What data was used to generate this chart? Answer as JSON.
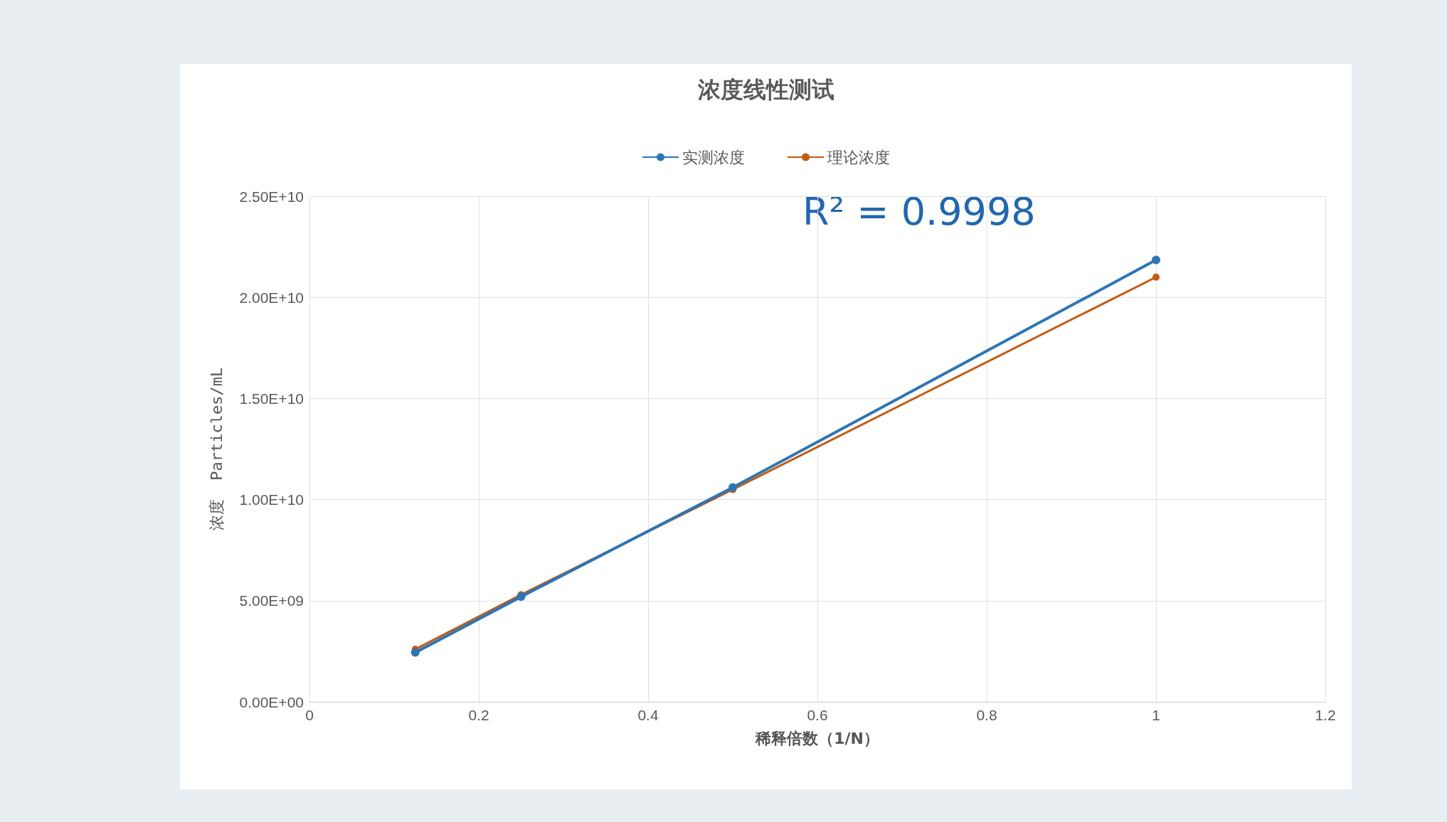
{
  "chart_data": {
    "type": "line",
    "title": "浓度线性测试",
    "xlabel": "稀释倍数（1/N）",
    "ylabel": "浓度  Particles/mL",
    "x": [
      0.125,
      0.25,
      0.5,
      1
    ],
    "series": [
      {
        "name": "实测浓度",
        "color": "#2e75b6",
        "values": [
          2440000000,
          5200000000,
          10600000000,
          21850000000
        ]
      },
      {
        "name": "理论浓度",
        "color": "#c55a11",
        "values": [
          2600000000,
          5300000000,
          10500000000,
          21000000000
        ]
      }
    ],
    "xlim": [
      0,
      1.2
    ],
    "xticks": [
      0,
      0.2,
      0.4,
      0.6,
      0.8,
      1,
      1.2
    ],
    "ylim": [
      0,
      25000000000
    ],
    "yticks": [
      {
        "value": 0,
        "label": "0.00E+00"
      },
      {
        "value": 5000000000,
        "label": "5.00E+09"
      },
      {
        "value": 10000000000,
        "label": "1.00E+10"
      },
      {
        "value": 15000000000,
        "label": "1.50E+10"
      },
      {
        "value": 20000000000,
        "label": "2.00E+10"
      },
      {
        "value": 25000000000,
        "label": "2.50E+10"
      }
    ],
    "annotations": [
      "R² = 0.9998"
    ],
    "grid": true,
    "legend": "top",
    "marker": "circle",
    "line_style": "solid"
  }
}
